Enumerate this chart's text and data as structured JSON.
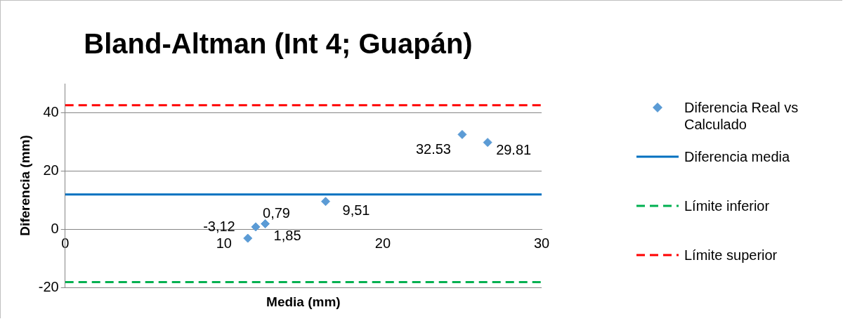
{
  "chart_data": {
    "type": "scatter",
    "title": "Bland-Altman (Int 4; Guapán)",
    "xlabel": "Media (mm)",
    "ylabel": "Diferencia (mm)",
    "xlim": [
      0,
      30
    ],
    "xticks": [
      0,
      10,
      20,
      30
    ],
    "ylim": [
      -20,
      50
    ],
    "yticks": [
      -20,
      0,
      20,
      40
    ],
    "grid": "y",
    "legend": "right",
    "series": [
      {
        "name": "Diferencia Real vs Calculado",
        "marker": "diamond",
        "color": "#5b9bd5",
        "x": [
          11.5,
          12.0,
          12.6,
          16.4,
          25.0,
          26.6
        ],
        "values": [
          -3.12,
          0.79,
          1.85,
          9.51,
          32.53,
          29.81
        ],
        "value_labels": [
          "-3,12",
          "0,79",
          "1,85",
          "9,51",
          "32.53",
          "29.81"
        ]
      },
      {
        "name": "Diferencia media",
        "type": "line",
        "marker": "none",
        "color": "#0070c0",
        "line_style": "solid",
        "x": [
          0,
          30
        ],
        "values": [
          11.9,
          11.9
        ]
      },
      {
        "name": "Límite inferior",
        "type": "line",
        "marker": "none",
        "color": "#00b050",
        "line_style": "dashed",
        "x": [
          0,
          30
        ],
        "values": [
          -18.2,
          -18.2
        ]
      },
      {
        "name": "Límite superior",
        "type": "line",
        "marker": "none",
        "color": "#ff0000",
        "line_style": "dashed",
        "x": [
          0,
          30
        ],
        "values": [
          42.6,
          42.6
        ]
      }
    ]
  }
}
